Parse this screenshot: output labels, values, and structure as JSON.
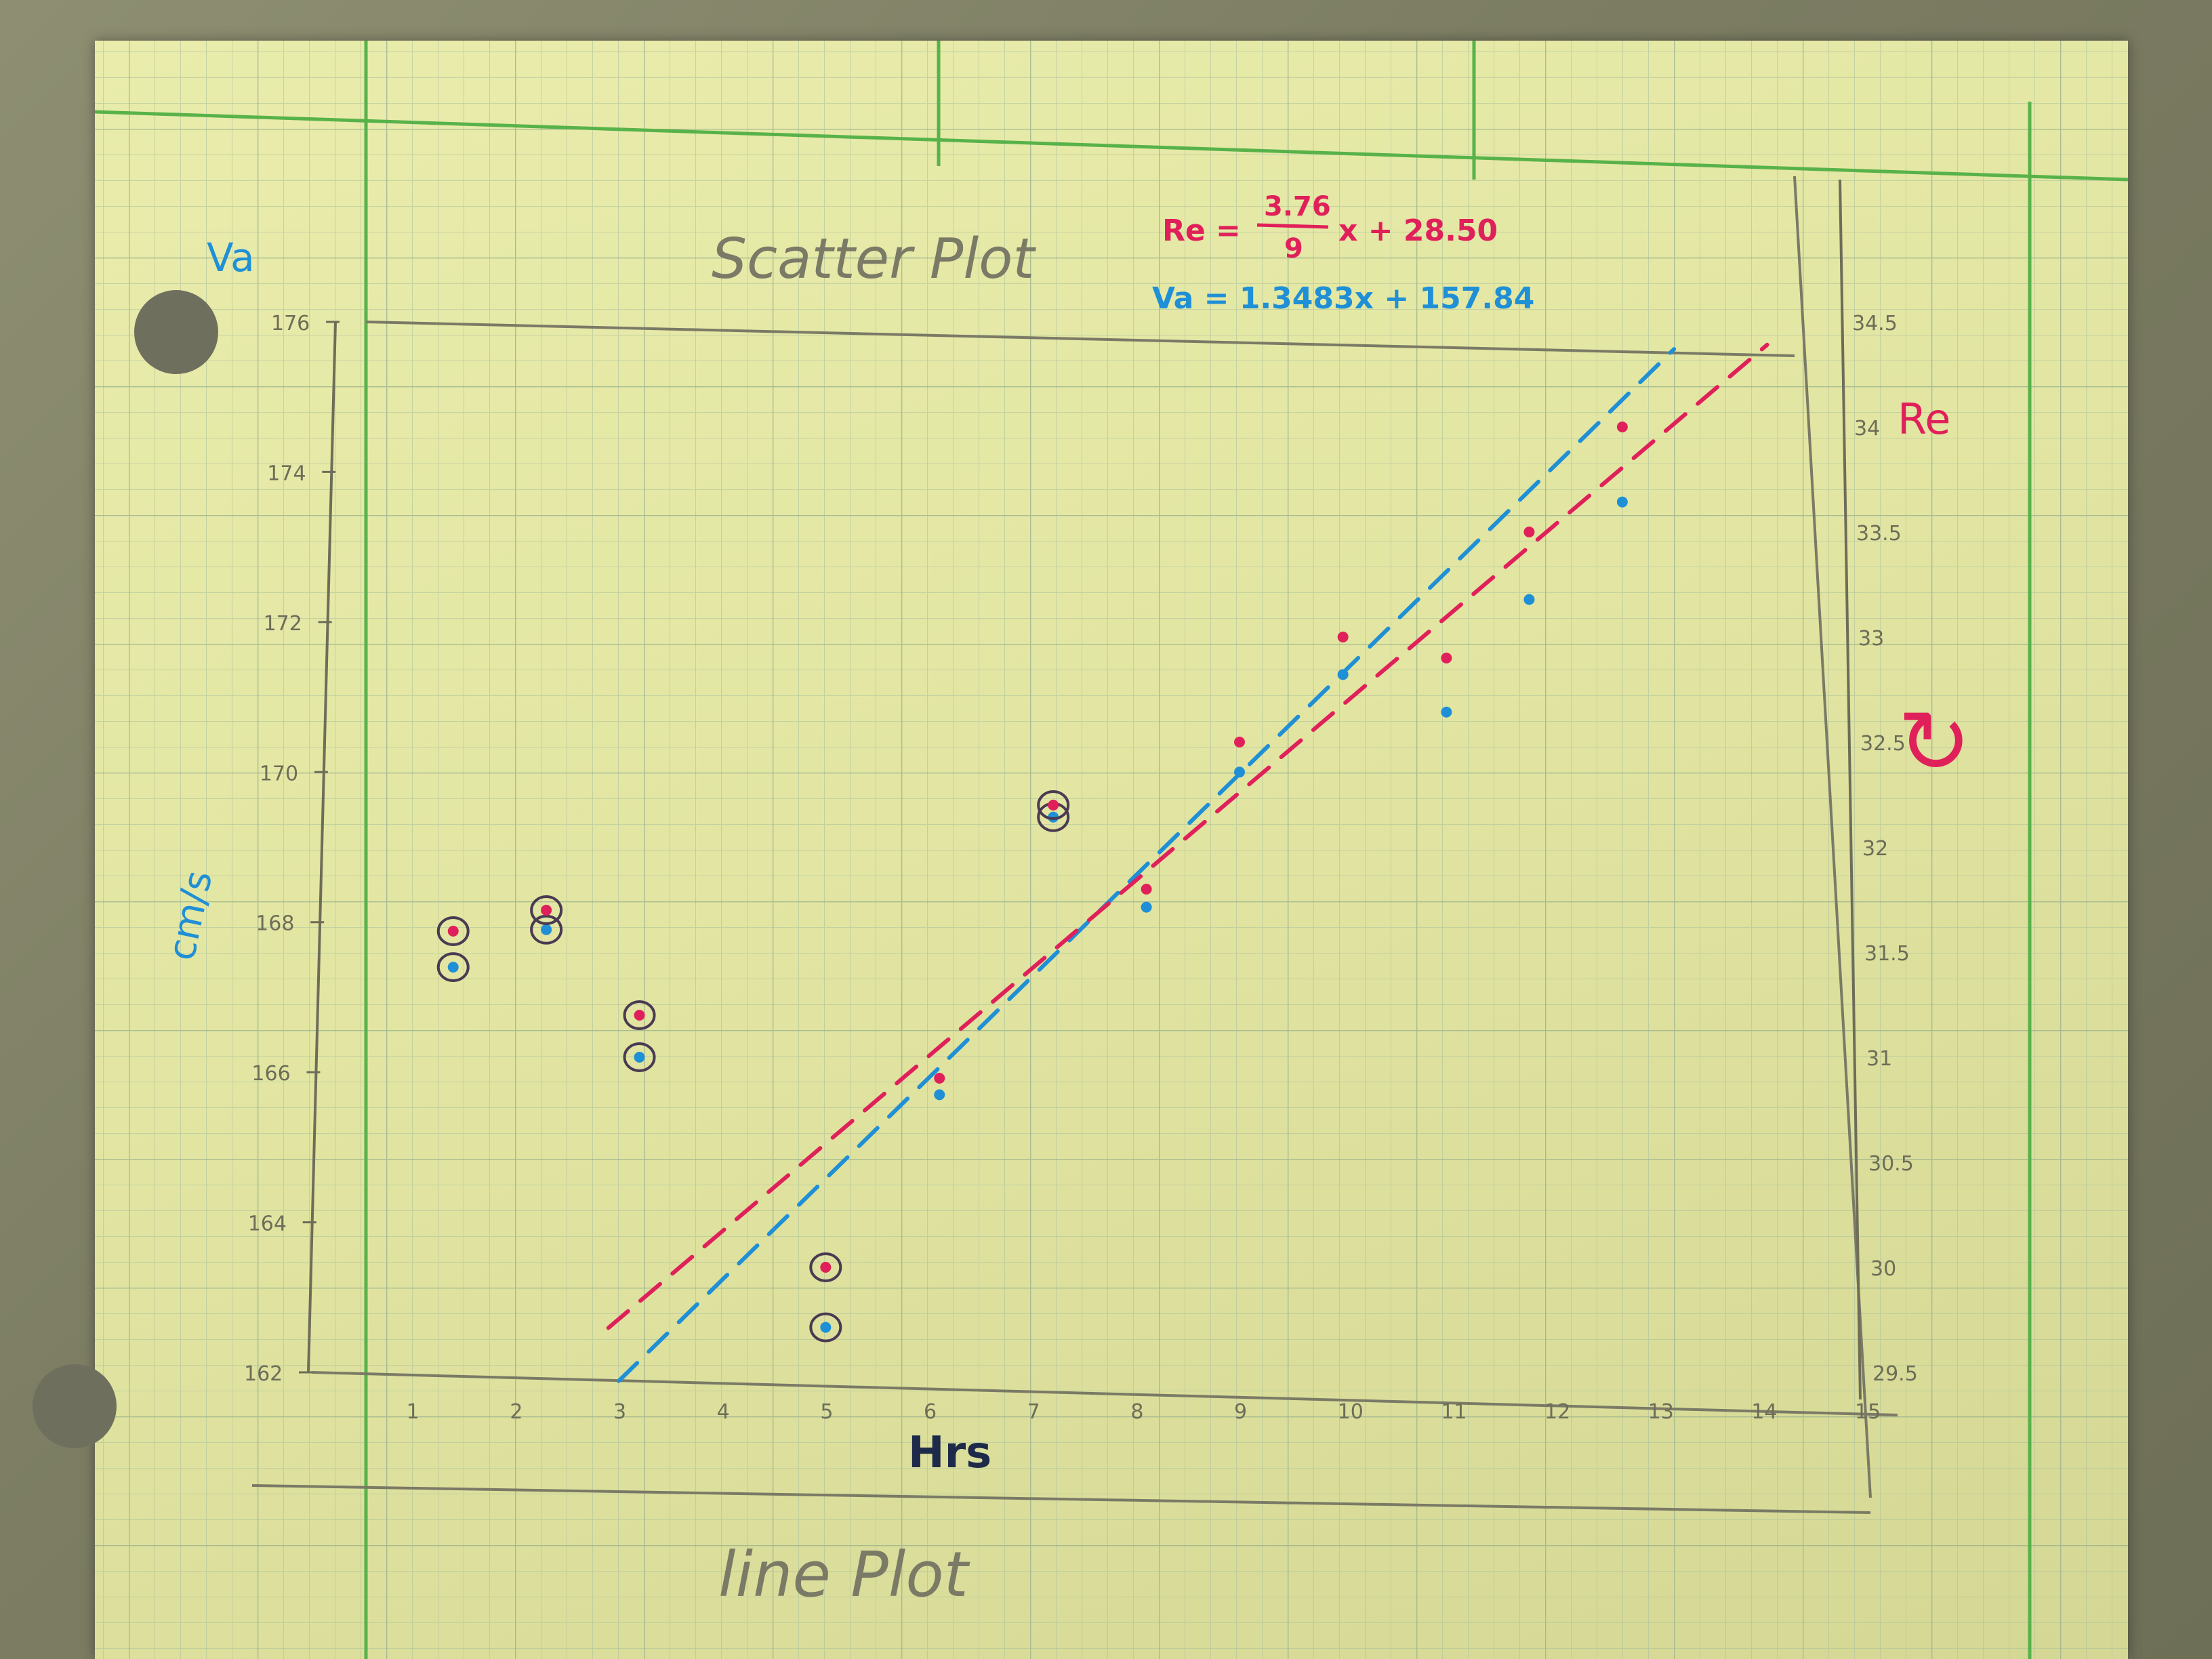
{
  "header": {
    "title": "Scatter Plot",
    "subtitle": "line Plot",
    "equation_re": {
      "lhs": "Re =",
      "numerator": "3.76",
      "denominator": "9",
      "rhs": "x + 28.50"
    },
    "equation_va": "Va = 1.3483x + 157.84",
    "cycle_symbol": "↻"
  },
  "chart_data": {
    "type": "scatter",
    "xlabel": "Hrs",
    "ylabel_left": "cm/s",
    "left_axis_name": "Va",
    "right_axis_name": "Re",
    "xlim": [
      0,
      15
    ],
    "ylim_left": [
      162,
      176
    ],
    "ylim_right": [
      29.5,
      34.5
    ],
    "x_ticks": [
      "1",
      "2",
      "3",
      "4",
      "5",
      "6",
      "7",
      "8",
      "9",
      "10",
      "11",
      "12",
      "13",
      "14",
      "15"
    ],
    "y_left_ticks": [
      "162",
      "164",
      "166",
      "168",
      "170",
      "172",
      "174",
      "176"
    ],
    "y_right_ticks": [
      "29.5",
      "30",
      "30.5",
      "31",
      "31.5",
      "32",
      "32.5",
      "33",
      "33.5",
      "34",
      "34.5"
    ],
    "grid": true,
    "colors": {
      "va": "#1f8fd6",
      "re": "#e0205a",
      "pencil": "#6d6d58",
      "circle": "#4a3a52"
    },
    "series": [
      {
        "name": "Va",
        "axis": "left",
        "x": [
          1.4,
          2.3,
          3.2,
          5.0,
          6.1,
          7.2,
          8.1,
          9.0,
          10.0,
          11.0,
          11.8,
          12.7
        ],
        "y": [
          167.4,
          167.9,
          166.2,
          162.6,
          165.7,
          169.4,
          168.2,
          170.0,
          171.3,
          170.8,
          172.3,
          173.6
        ],
        "outliers_circled": [
          0,
          1,
          2,
          3,
          5
        ]
      },
      {
        "name": "Re",
        "axis": "right",
        "x": [
          1.4,
          2.3,
          3.2,
          5.0,
          6.1,
          7.2,
          8.1,
          9.0,
          10.0,
          11.0,
          11.8,
          12.7
        ],
        "y": [
          31.6,
          31.7,
          31.2,
          30.0,
          30.9,
          32.2,
          31.8,
          32.5,
          33.0,
          32.9,
          33.5,
          34.0
        ],
        "outliers_circled": [
          0,
          1,
          2,
          3,
          5
        ]
      }
    ],
    "fit_lines": [
      {
        "name": "Va",
        "axis": "left",
        "slope": 1.3483,
        "intercept": 157.84,
        "x_range": [
          3.0,
          13.2
        ]
      },
      {
        "name": "Re",
        "axis": "right",
        "slope": 0.4178,
        "intercept": 28.5,
        "x_range": [
          2.9,
          14.1
        ]
      }
    ]
  }
}
